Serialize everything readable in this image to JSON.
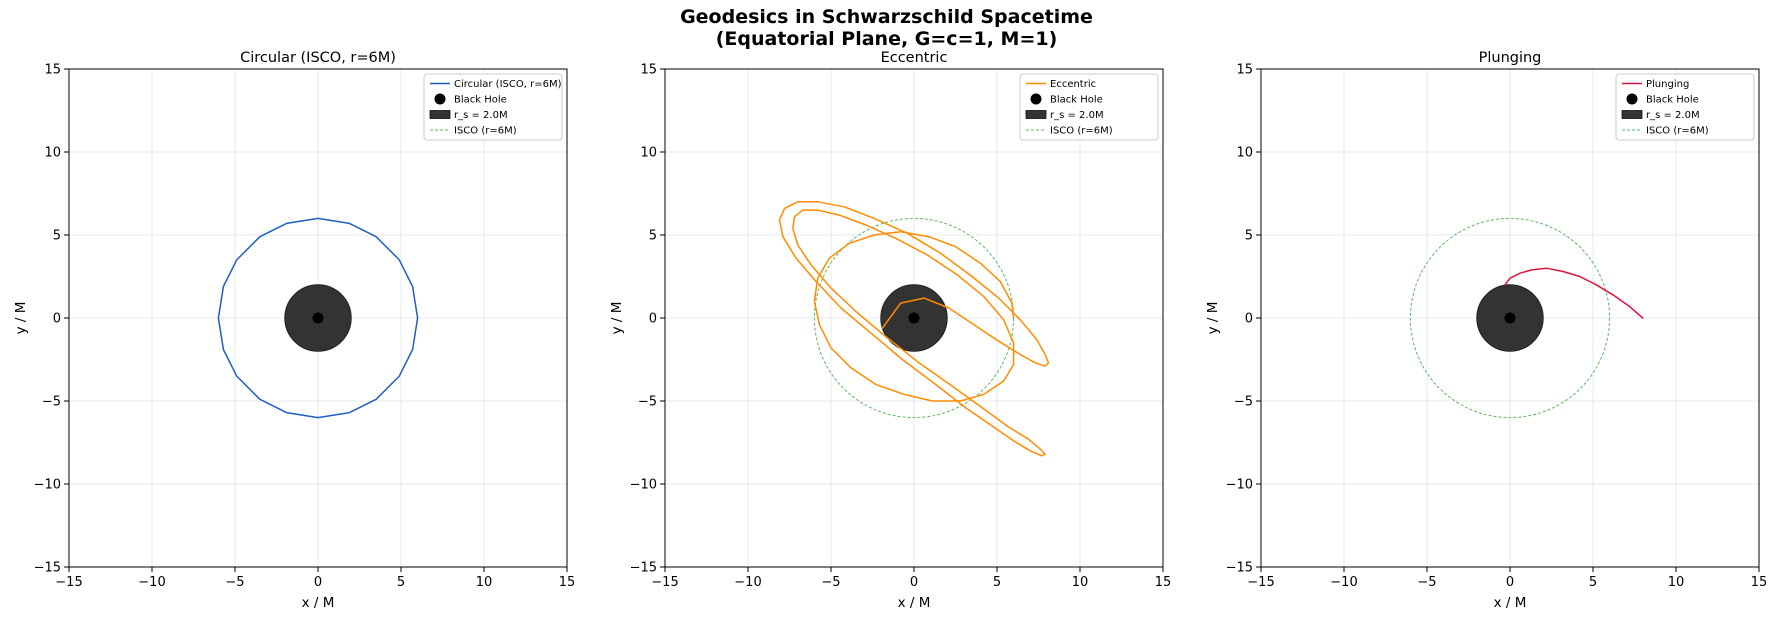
{
  "figure": {
    "title_line1": "Geodesics in Schwarzschild Spacetime",
    "title_line2": "(Equatorial Plane, G=c=1, M=1)"
  },
  "chart_data": [
    {
      "type": "line",
      "title": "Circular (ISCO, r=6M)",
      "xlabel": "x / M",
      "ylabel": "y / M",
      "xlim": [
        -15,
        15
      ],
      "ylim": [
        -15,
        15
      ],
      "xticks": [
        -15,
        -10,
        -5,
        0,
        5,
        10,
        15
      ],
      "yticks": [
        -15,
        -10,
        -5,
        0,
        5,
        10,
        15
      ],
      "grid": true,
      "legend_position": "top-right",
      "legend": [
        "Circular (ISCO, r=6M)",
        "Black Hole",
        "r_s = 2.0M",
        "ISCO (r=6M)"
      ],
      "colors": {
        "orbit": "#1f5fbf",
        "horizon": "#333333",
        "singularity": "#000000",
        "isco": "#5cb85c"
      },
      "horizon_radius": 2.0,
      "isco_radius": 6,
      "show_isco_circle": false,
      "orbit": {
        "name": "Circular (ISCO, r=6M)",
        "x": [
          6.0,
          5.7,
          4.9,
          3.5,
          1.9,
          0.0,
          -1.9,
          -3.5,
          -4.9,
          -5.7,
          -6.0,
          -5.7,
          -4.9,
          -3.5,
          -1.9,
          0.0,
          1.9,
          3.5,
          4.9,
          5.7,
          6.0
        ],
        "y": [
          0.0,
          1.9,
          3.5,
          4.9,
          5.7,
          6.0,
          5.7,
          4.9,
          3.5,
          1.9,
          0.0,
          -1.9,
          -3.5,
          -4.9,
          -5.7,
          -6.0,
          -5.7,
          -4.9,
          -3.5,
          -1.9,
          0.0
        ]
      }
    },
    {
      "type": "line",
      "title": "Eccentric",
      "xlabel": "x / M",
      "ylabel": "y / M",
      "xlim": [
        -15,
        15
      ],
      "ylim": [
        -15,
        15
      ],
      "xticks": [
        -15,
        -10,
        -5,
        0,
        5,
        10,
        15
      ],
      "yticks": [
        -15,
        -10,
        -5,
        0,
        5,
        10,
        15
      ],
      "grid": true,
      "legend_position": "top-right",
      "legend": [
        "Eccentric",
        "Black Hole",
        "r_s = 2.0M",
        "ISCO (r=6M)"
      ],
      "colors": {
        "orbit": "#ff8c00",
        "horizon": "#333333",
        "singularity": "#000000",
        "isco": "#5cb85c"
      },
      "horizon_radius": 2.0,
      "isco_radius": 6,
      "show_isco_circle": true,
      "orbit": {
        "name": "Eccentric",
        "x": [
          6.0,
          5.9,
          5.2,
          4.0,
          2.5,
          0.9,
          -0.8,
          -2.4,
          -3.9,
          -5.1,
          -5.8,
          -6.0,
          -5.7,
          -5.0,
          -3.8,
          -2.3,
          -0.6,
          1.1,
          2.8,
          4.2,
          5.4,
          6.0,
          6.0,
          5.4,
          4.2,
          2.6,
          0.8,
          -1.1,
          -2.9,
          -4.5,
          -5.8,
          -6.7,
          -7.2,
          -7.3,
          -7.0,
          -6.2,
          -5.0,
          -3.4,
          -1.6,
          0.3,
          2.3,
          4.1,
          5.6,
          6.9,
          7.6,
          7.9,
          7.7,
          7.0,
          6.0,
          4.7,
          3.1,
          1.3,
          -0.7,
          -2.6,
          -4.4,
          -5.9,
          -7.1,
          -7.9,
          -8.1,
          -7.8,
          -7.0,
          -5.8,
          -4.2,
          -2.4,
          -0.4,
          1.6,
          3.5,
          5.1,
          6.4,
          7.4,
          7.9,
          8.1,
          7.9,
          7.3,
          6.4,
          5.1,
          3.6,
          2.1,
          0.6,
          -0.8,
          -1.9
        ],
        "y": [
          0.0,
          0.9,
          2.2,
          3.3,
          4.3,
          4.9,
          5.2,
          5.0,
          4.5,
          3.6,
          2.4,
          1.0,
          -0.4,
          -1.8,
          -3.0,
          -4.0,
          -4.6,
          -5.0,
          -5.0,
          -4.6,
          -3.8,
          -2.8,
          -1.5,
          -0.1,
          1.3,
          2.6,
          3.8,
          4.8,
          5.6,
          6.2,
          6.5,
          6.5,
          6.1,
          5.4,
          4.4,
          3.2,
          1.8,
          0.3,
          -1.2,
          -2.7,
          -4.1,
          -5.4,
          -6.5,
          -7.3,
          -7.9,
          -8.2,
          -8.3,
          -8.0,
          -7.4,
          -6.5,
          -5.4,
          -4.0,
          -2.5,
          -0.9,
          0.6,
          2.2,
          3.6,
          4.9,
          5.9,
          6.6,
          7.0,
          7.0,
          6.7,
          6.0,
          5.1,
          3.9,
          2.5,
          1.2,
          -0.1,
          -1.3,
          -2.2,
          -2.7,
          -2.9,
          -2.7,
          -2.2,
          -1.4,
          -0.4,
          0.6,
          1.2,
          0.9,
          -0.6
        ]
      }
    },
    {
      "type": "line",
      "title": "Plunging",
      "xlabel": "x / M",
      "ylabel": "y / M",
      "xlim": [
        -15,
        15
      ],
      "ylim": [
        -15,
        15
      ],
      "xticks": [
        -15,
        -10,
        -5,
        0,
        5,
        10,
        15
      ],
      "yticks": [
        -15,
        -10,
        -5,
        0,
        5,
        10,
        15
      ],
      "grid": true,
      "legend_position": "top-right",
      "legend": [
        "Plunging",
        "Black Hole",
        "r_s = 2.0M",
        "ISCO (r=6M)"
      ],
      "colors": {
        "orbit": "#dc143c",
        "horizon": "#333333",
        "singularity": "#000000",
        "isco": "#5cb85c"
      },
      "horizon_radius": 2.0,
      "isco_radius": 6,
      "show_isco_circle": true,
      "orbit": {
        "name": "Plunging",
        "x": [
          8.0,
          7.2,
          6.2,
          5.2,
          4.2,
          3.2,
          2.2,
          1.3,
          0.6,
          0.0,
          -0.3
        ],
        "y": [
          0.0,
          0.7,
          1.4,
          2.0,
          2.5,
          2.8,
          3.0,
          2.9,
          2.7,
          2.4,
          2.0
        ]
      }
    }
  ]
}
